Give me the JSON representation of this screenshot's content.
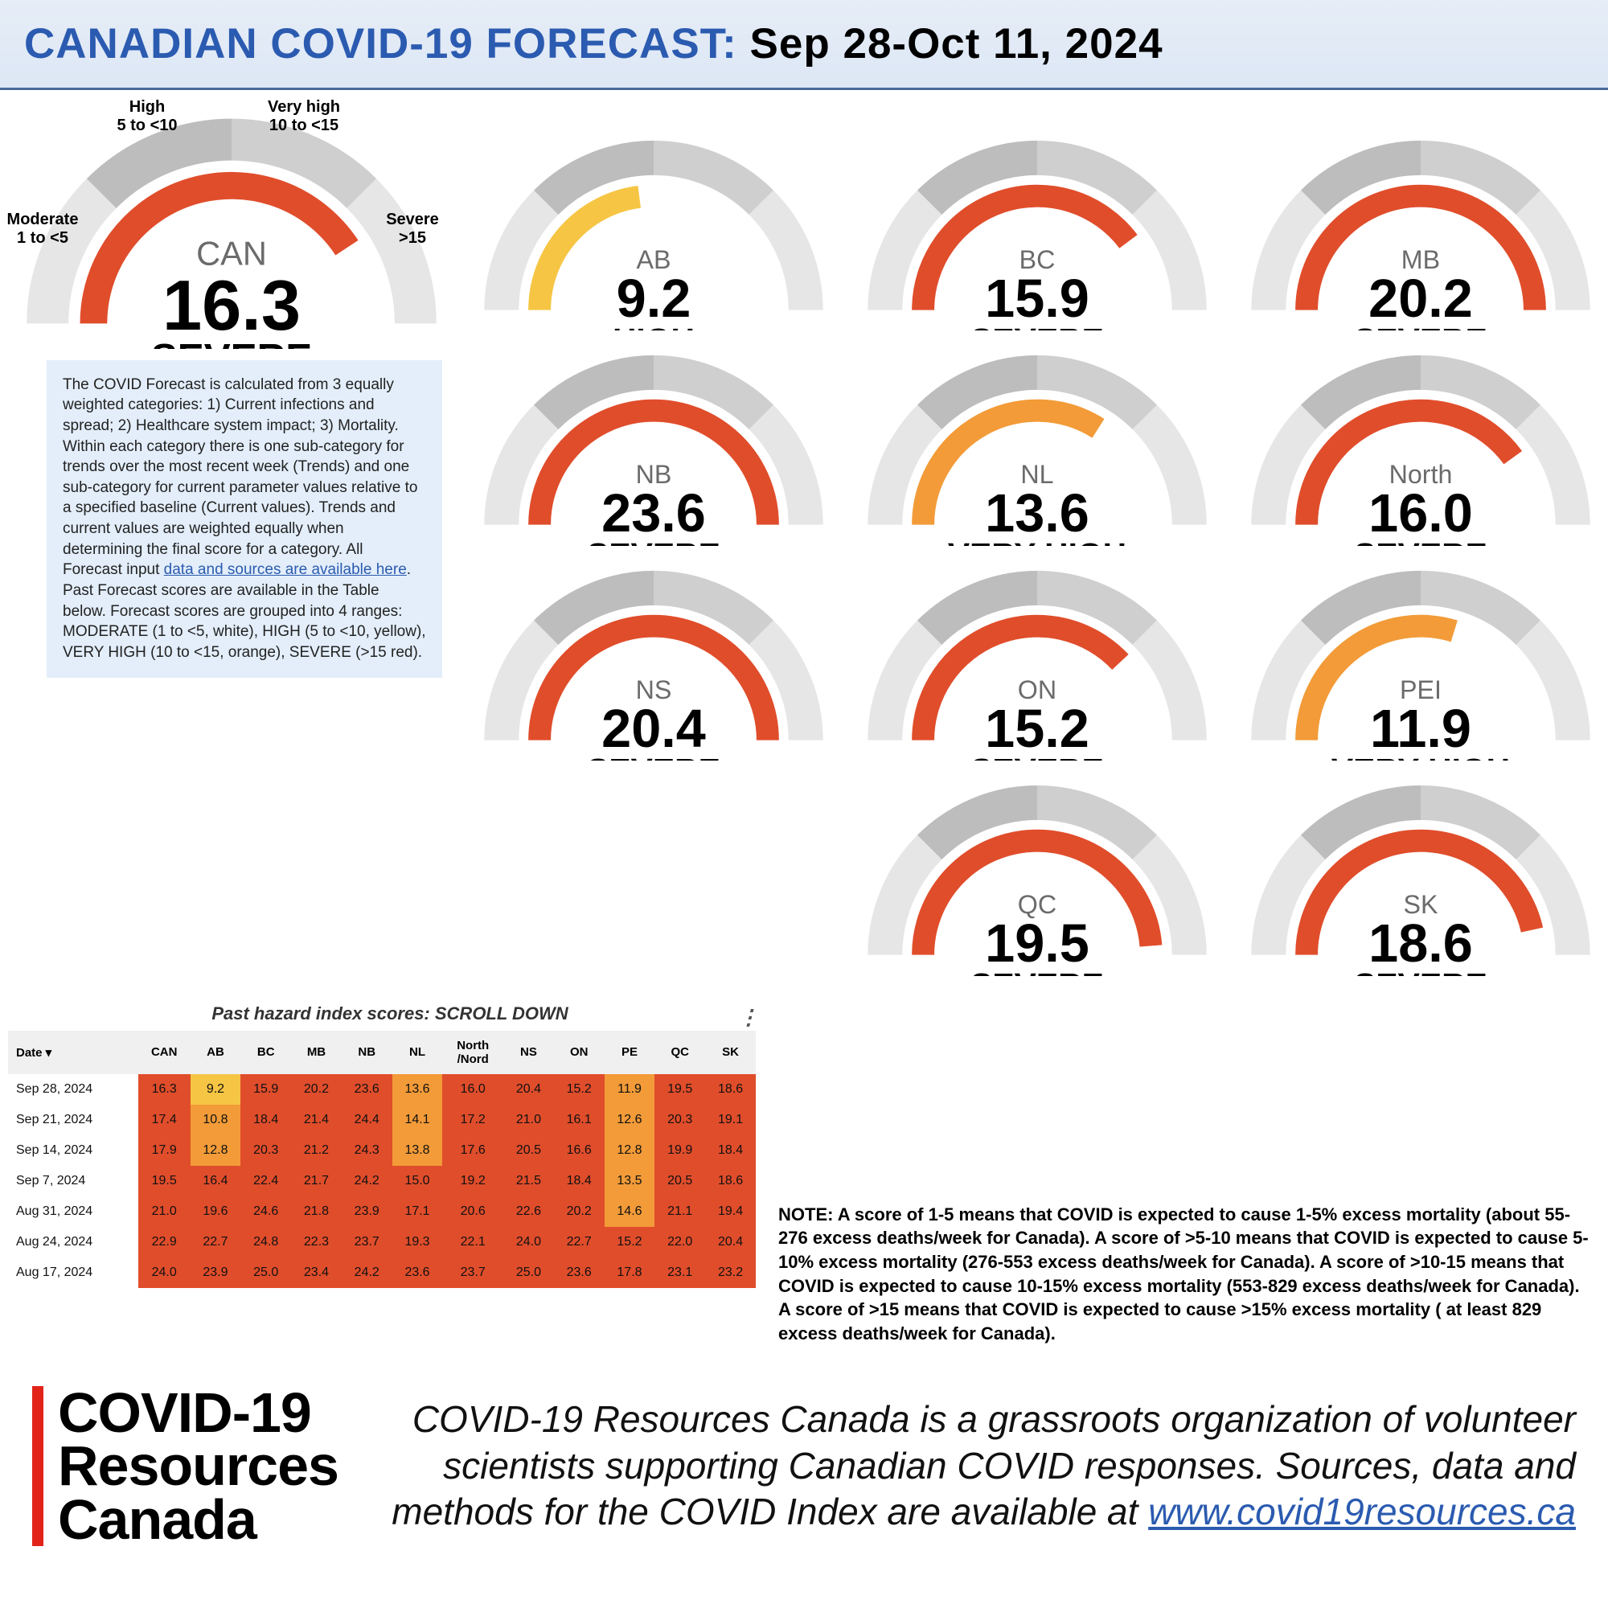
{
  "header": {
    "prefix": "CANADIAN COVID-19 FORECAST:",
    "date_range": " Sep 28-Oct 11, 2024"
  },
  "scale": {
    "min": 0,
    "max": 20
  },
  "colors": {
    "high": "#f6c544",
    "veryhigh": "#f29b38",
    "severe": "#e04d2b",
    "track_light": "#e6e6e6",
    "track_mid": "#cfcfcf",
    "track_dark": "#bdbdbd"
  },
  "main_gauge": {
    "region": "CAN",
    "score": "16.3",
    "score_num": 16.3,
    "status": "SEVERE",
    "labels": {
      "mod": "Moderate\n1 to <5",
      "high": "High\n5 to <10",
      "vhigh": "Very high\n10 to <15",
      "severe": "Severe\n>15"
    },
    "axis0": "0",
    "axis20": "20"
  },
  "gauges": [
    {
      "region": "AB",
      "score": "9.2",
      "num": 9.2,
      "status": "HIGH"
    },
    {
      "region": "BC",
      "score": "15.9",
      "num": 15.9,
      "status": "SEVERE"
    },
    {
      "region": "MB",
      "score": "20.2",
      "num": 20.2,
      "status": "SEVERE"
    },
    {
      "region": "NB",
      "score": "23.6",
      "num": 23.6,
      "status": "SEVERE"
    },
    {
      "region": "NL",
      "score": "13.6",
      "num": 13.6,
      "status": "VERY HIGH"
    },
    {
      "region": "North",
      "score": "16.0",
      "num": 16.0,
      "status": "SEVERE"
    },
    {
      "region": "NS",
      "score": "20.4",
      "num": 20.4,
      "status": "SEVERE"
    },
    {
      "region": "ON",
      "score": "15.2",
      "num": 15.2,
      "status": "SEVERE"
    },
    {
      "region": "PEI",
      "score": "11.9",
      "num": 11.9,
      "status": "VERY HIGH"
    },
    {
      "region": "QC",
      "score": "19.5",
      "num": 19.5,
      "status": "SEVERE"
    },
    {
      "region": "SK",
      "score": "18.6",
      "num": 18.6,
      "status": "SEVERE"
    }
  ],
  "info_pre": "The COVID Forecast is calculated from 3 equally weighted categories: 1) Current infections and spread; 2) Healthcare system impact; 3) Mortality. Within each category there is one sub-category for trends over the most recent week (Trends) and one sub-category for current parameter values relative to a specified baseline (Current values). Trends and current values are weighted equally when determining the final score for a category. All Forecast input ",
  "info_link": "data and sources are available here",
  "info_post": ". Past Forecast scores are available in the Table below. Forecast scores are grouped into 4 ranges: MODERATE (1 to <5, white), HIGH (5 to <10, yellow), VERY HIGH (10 to <15, orange), SEVERE (>15 red).",
  "table": {
    "title": "Past hazard index scores: SCROLL DOWN",
    "date_header": "Date ▾",
    "columns": [
      "CAN",
      "AB",
      "BC",
      "MB",
      "NB",
      "NL",
      "North\n/Nord",
      "NS",
      "ON",
      "PE",
      "QC",
      "SK"
    ],
    "rows": [
      {
        "date": "Sep 28, 2024",
        "vals": [
          16.3,
          9.2,
          15.9,
          20.2,
          23.6,
          13.6,
          16.0,
          20.4,
          15.2,
          11.9,
          19.5,
          18.6
        ]
      },
      {
        "date": "Sep 21, 2024",
        "vals": [
          17.4,
          10.8,
          18.4,
          21.4,
          24.4,
          14.1,
          17.2,
          21.0,
          16.1,
          12.6,
          20.3,
          19.1
        ]
      },
      {
        "date": "Sep 14, 2024",
        "vals": [
          17.9,
          12.8,
          20.3,
          21.2,
          24.3,
          13.8,
          17.6,
          20.5,
          16.6,
          12.8,
          19.9,
          18.4
        ]
      },
      {
        "date": "Sep 7, 2024",
        "vals": [
          19.5,
          16.4,
          22.4,
          21.7,
          24.2,
          15.0,
          19.2,
          21.5,
          18.4,
          13.5,
          20.5,
          18.6
        ]
      },
      {
        "date": "Aug 31, 2024",
        "vals": [
          21.0,
          19.6,
          24.6,
          21.8,
          23.9,
          17.1,
          20.6,
          22.6,
          20.2,
          14.6,
          21.1,
          19.4
        ]
      },
      {
        "date": "Aug 24, 2024",
        "vals": [
          22.9,
          22.7,
          24.8,
          22.3,
          23.7,
          19.3,
          22.1,
          24.0,
          22.7,
          15.2,
          22.0,
          20.4
        ]
      },
      {
        "date": "Aug 17, 2024",
        "vals": [
          24.0,
          23.9,
          25.0,
          23.4,
          24.2,
          23.6,
          23.7,
          25.0,
          23.6,
          17.8,
          23.1,
          23.2
        ]
      }
    ]
  },
  "note": "NOTE: A score of 1-5 means that COVID is expected to cause 1-5% excess mortality (about 55-276 excess deaths/week for Canada). A score of >5-10 means that COVID is expected to cause 5-10% excess mortality (276-553 excess deaths/week for Canada). A score of >10-15 means that COVID is expected to cause 10-15% excess mortality (553-829 excess deaths/week for Canada). A score of >15 means that COVID is expected to cause >15% excess mortality ( at least 829 excess deaths/week for Canada).",
  "footer": {
    "brand_l1": "COVID-19",
    "brand_l2": "Resources",
    "brand_l3": "Canada",
    "text_pre": "COVID-19 Resources Canada is a grassroots organization of volunteer scientists supporting Canadian COVID responses. Sources, data and methods for the COVID Index are available at ",
    "url": "www.covid19resources.ca"
  }
}
